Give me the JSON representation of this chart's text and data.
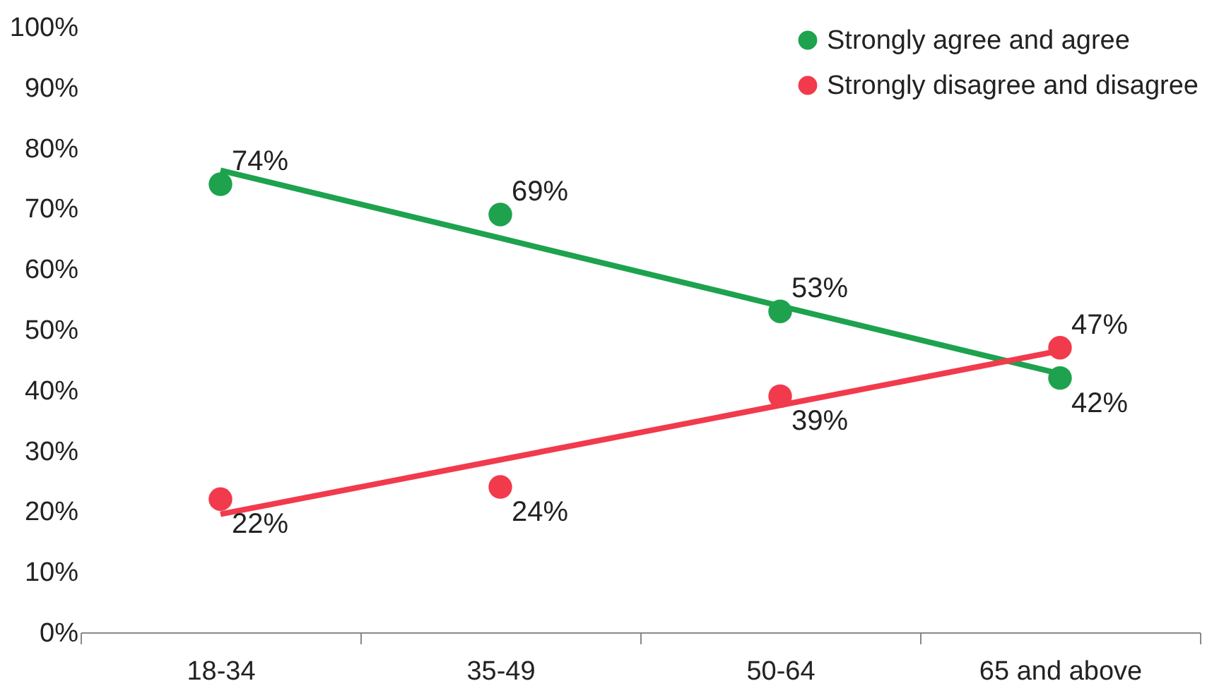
{
  "chart_data": {
    "type": "scatter",
    "categories": [
      "18-34",
      "35-49",
      "50-64",
      "65 and above"
    ],
    "series": [
      {
        "type": "line",
        "marker": "none",
        "color": "#1ea24e",
        "values": [
          76.3,
          65.1,
          53.9,
          42.7
        ]
      },
      {
        "type": "line",
        "marker": "none",
        "color": "#f23a4d",
        "values": [
          19.5,
          28.5,
          37.5,
          46.5
        ]
      },
      {
        "name": "Strongly agree and agree",
        "color": "#1ea24e",
        "values": [
          74,
          69,
          53,
          42
        ],
        "value_labels": [
          "74%",
          "69%",
          "53%",
          "42%"
        ]
      },
      {
        "name": "Strongly disagree and disagree",
        "color": "#f23a4d",
        "values": [
          22,
          24,
          39,
          47
        ],
        "value_labels": [
          "22%",
          "24%",
          "39%",
          "47%"
        ]
      }
    ],
    "ylim": [
      0,
      100
    ],
    "yticks": [
      {
        "value": 0,
        "label": "0%"
      },
      {
        "value": 10,
        "label": "10%"
      },
      {
        "value": 20,
        "label": "20%"
      },
      {
        "value": 30,
        "label": "30%"
      },
      {
        "value": 40,
        "label": "40%"
      },
      {
        "value": 50,
        "label": "50%"
      },
      {
        "value": 60,
        "label": "60%"
      },
      {
        "value": 70,
        "label": "70%"
      },
      {
        "value": 80,
        "label": "80%"
      },
      {
        "value": 90,
        "label": "90%"
      },
      {
        "value": 100,
        "label": "100%"
      }
    ],
    "grid": false,
    "legend": "top right",
    "marker": "circle",
    "line_style": "solid"
  }
}
